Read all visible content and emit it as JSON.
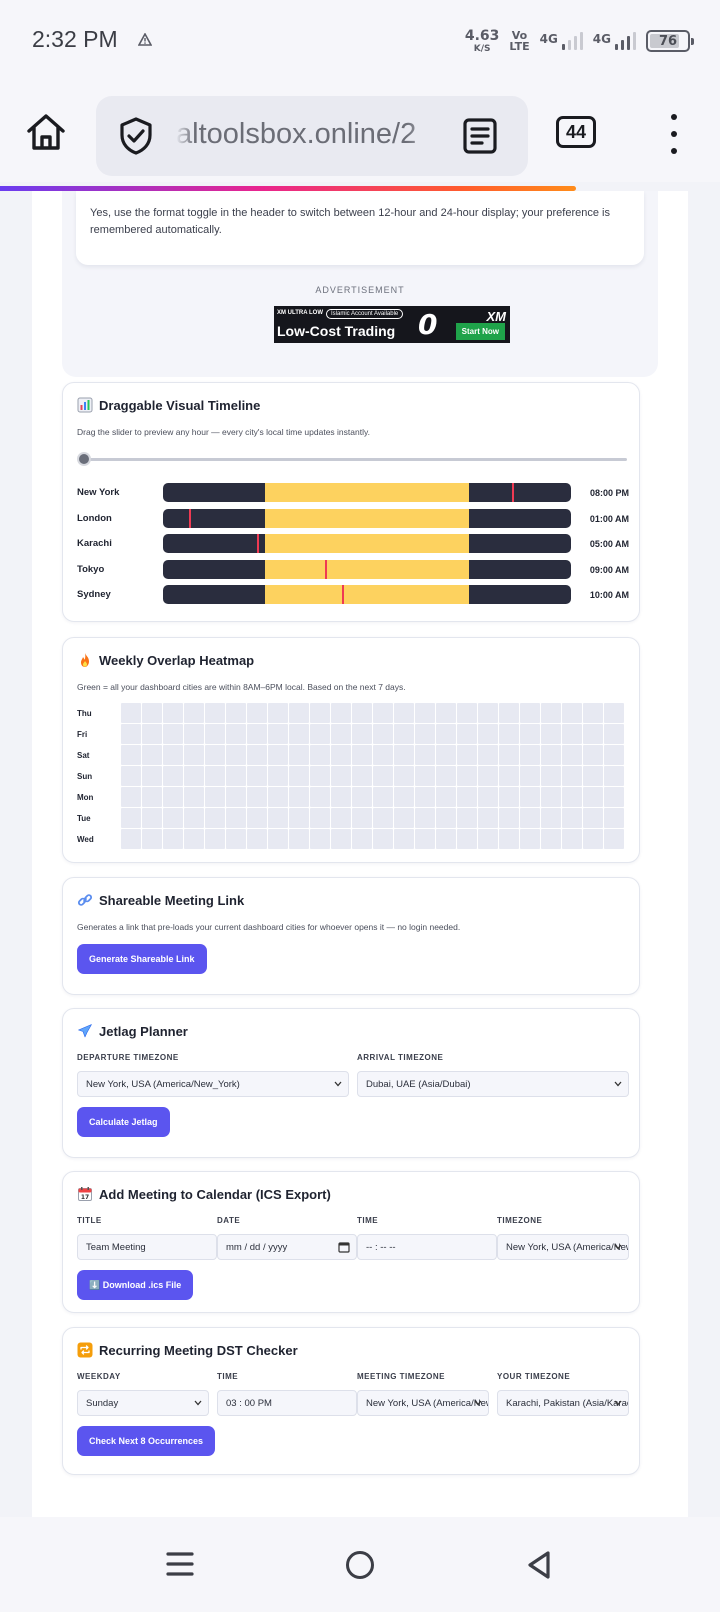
{
  "status_bar": {
    "time": "2:32 PM",
    "net_speed_value": "4.63",
    "net_speed_unit": "K/S",
    "volte_top": "Vo",
    "volte_bottom": "LTE",
    "sim1_label": "4G",
    "sim2_label": "4G",
    "battery": "76"
  },
  "browser": {
    "url": "altoolsbox.online/2",
    "tab_count": "44"
  },
  "faq": {
    "answer": "Yes, use the format toggle in the header to switch between 12-hour and 24-hour display; your preference is remembered automatically."
  },
  "ad": {
    "label": "ADVERTISEMENT",
    "small_text": "XM ULTRA LOW",
    "pill_text": "Islamic Account Available",
    "headline": "Low-Cost Trading",
    "zero_text": "0",
    "brand": "XM",
    "cta": "Start Now"
  },
  "timeline": {
    "title": "Draggable Visual Timeline",
    "description": "Drag the slider to preview any hour — every city's local time updates instantly.",
    "slider_value": 0,
    "daylight_start_fraction": 0.25,
    "daylight_end_fraction": 0.75,
    "rows": [
      {
        "city": "New York",
        "time": "08:00 PM",
        "marker_hour": 20
      },
      {
        "city": "London",
        "time": "01:00 AM",
        "marker_hour": 1
      },
      {
        "city": "Karachi",
        "time": "05:00 AM",
        "marker_hour": 5
      },
      {
        "city": "Tokyo",
        "time": "09:00 AM",
        "marker_hour": 9
      },
      {
        "city": "Sydney",
        "time": "10:00 AM",
        "marker_hour": 10
      }
    ]
  },
  "heatmap": {
    "title": "Weekly Overlap Heatmap",
    "description": "Green = all your dashboard cities are within 8AM–6PM local. Based on the next 7 days.",
    "days": [
      "Thu",
      "Fri",
      "Sat",
      "Sun",
      "Mon",
      "Tue",
      "Wed"
    ],
    "hours": 24,
    "empty_color": "#e7e9f2"
  },
  "share": {
    "title": "Shareable Meeting Link",
    "description": "Generates a link that pre-loads your current dashboard cities for whoever opens it — no login needed.",
    "button": "Generate Shareable Link"
  },
  "jetlag": {
    "title": "Jetlag Planner",
    "departure_label": "DEPARTURE TIMEZONE",
    "departure_value": "New York, USA (America/New_York)",
    "arrival_label": "ARRIVAL TIMEZONE",
    "arrival_value": "Dubai, UAE (Asia/Dubai)",
    "button": "Calculate Jetlag"
  },
  "ics": {
    "title": "Add Meeting to Calendar (ICS Export)",
    "title_label": "TITLE",
    "title_value": "Team Meeting",
    "date_label": "DATE",
    "date_placeholder": "mm / dd / yyyy",
    "time_label": "TIME",
    "time_placeholder": "-- : --  --",
    "timezone_label": "TIMEZONE",
    "timezone_value": "New York, USA (America/New_York)",
    "button": "⬇️ Download .ics File"
  },
  "dst": {
    "title": "Recurring Meeting DST Checker",
    "weekday_label": "WEEKDAY",
    "weekday_value": "Sunday",
    "time_label": "TIME",
    "time_value": "03 : 00   PM",
    "meeting_tz_label": "MEETING TIMEZONE",
    "meeting_tz_value": "New York, USA (America/New_York)",
    "your_tz_label": "YOUR TIMEZONE",
    "your_tz_value": "Karachi, Pakistan (Asia/Karachi)",
    "button": "Check Next 8 Occurrences"
  },
  "colors": {
    "accent": "#5b55ef",
    "night": "#2a2d3e",
    "day": "#fdd25f",
    "marker": "#ef3a53"
  }
}
